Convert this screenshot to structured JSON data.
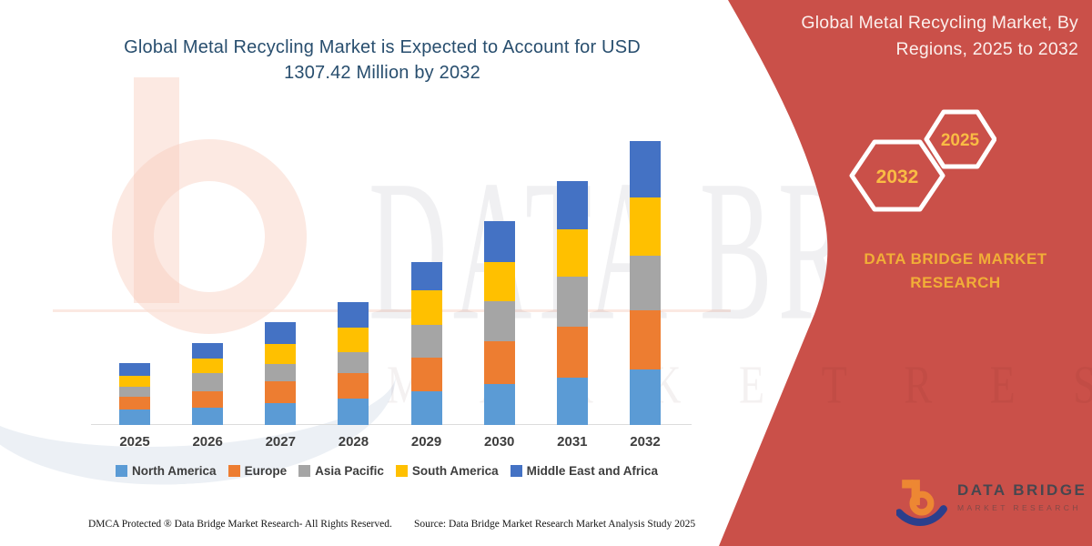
{
  "titles": {
    "main_line1": "Global Metal Recycling Market is Expected to Account for USD",
    "main_line2": "1307.42 Million by 2032",
    "panel_line1": "Global Metal Recycling Market, By",
    "panel_line2": "Regions, 2025 to 2032"
  },
  "side_panel": {
    "panel_color": "#CA5049",
    "hexagon_back_year": "2032",
    "hexagon_front_year": "2025",
    "brand_line1": "DATA BRIDGE MARKET",
    "brand_line2": "RESEARCH",
    "accent_text_color": "#F1AE37"
  },
  "logo": {
    "name_text": "DATA BRIDGE",
    "subtitle_text": "MARKET RESEARCH"
  },
  "watermark": {
    "big_text": "DATA BRIDGE",
    "sub_text": "M A R K E T   R E S E A R C H"
  },
  "footer": {
    "dmca": "DMCA Protected ® Data Bridge Market Research-  All Rights Reserved.",
    "source": "Source: Data Bridge Market Research  Market Analysis Study 2025"
  },
  "chart_data": {
    "type": "bar",
    "stacked": true,
    "title": "Global Metal Recycling Market is Expected to Account for USD 1307.42 Million by 2032",
    "categories": [
      "2025",
      "2026",
      "2027",
      "2028",
      "2029",
      "2030",
      "2031",
      "2032"
    ],
    "unit": "USD Million (estimated from bar heights; stated 2032 total = 1307.42)",
    "series": [
      {
        "name": "North America",
        "color": "#5B9BD5",
        "values": [
          71,
          80,
          101,
          122,
          155,
          189,
          218,
          256
        ]
      },
      {
        "name": "Europe",
        "color": "#ED7D31",
        "values": [
          59,
          75,
          101,
          117,
          155,
          197,
          235,
          272
        ]
      },
      {
        "name": "Asia Pacific",
        "color": "#A5A5A5",
        "values": [
          46,
          84,
          80,
          96,
          151,
          184,
          230,
          251
        ]
      },
      {
        "name": "South America",
        "color": "#FFC000",
        "values": [
          50,
          67,
          92,
          113,
          159,
          180,
          218,
          268
        ]
      },
      {
        "name": "Middle East and Africa",
        "color": "#4472C4",
        "values": [
          59,
          71,
          101,
          117,
          130,
          189,
          222,
          260
        ]
      }
    ],
    "totals_estimated": [
      285,
      377,
      475,
      565,
      750,
      939,
      1123,
      1307.42
    ],
    "ylim": [
      0,
      1307.42
    ],
    "y_axis_visible": false,
    "gridlines": false,
    "legend_position": "bottom"
  }
}
